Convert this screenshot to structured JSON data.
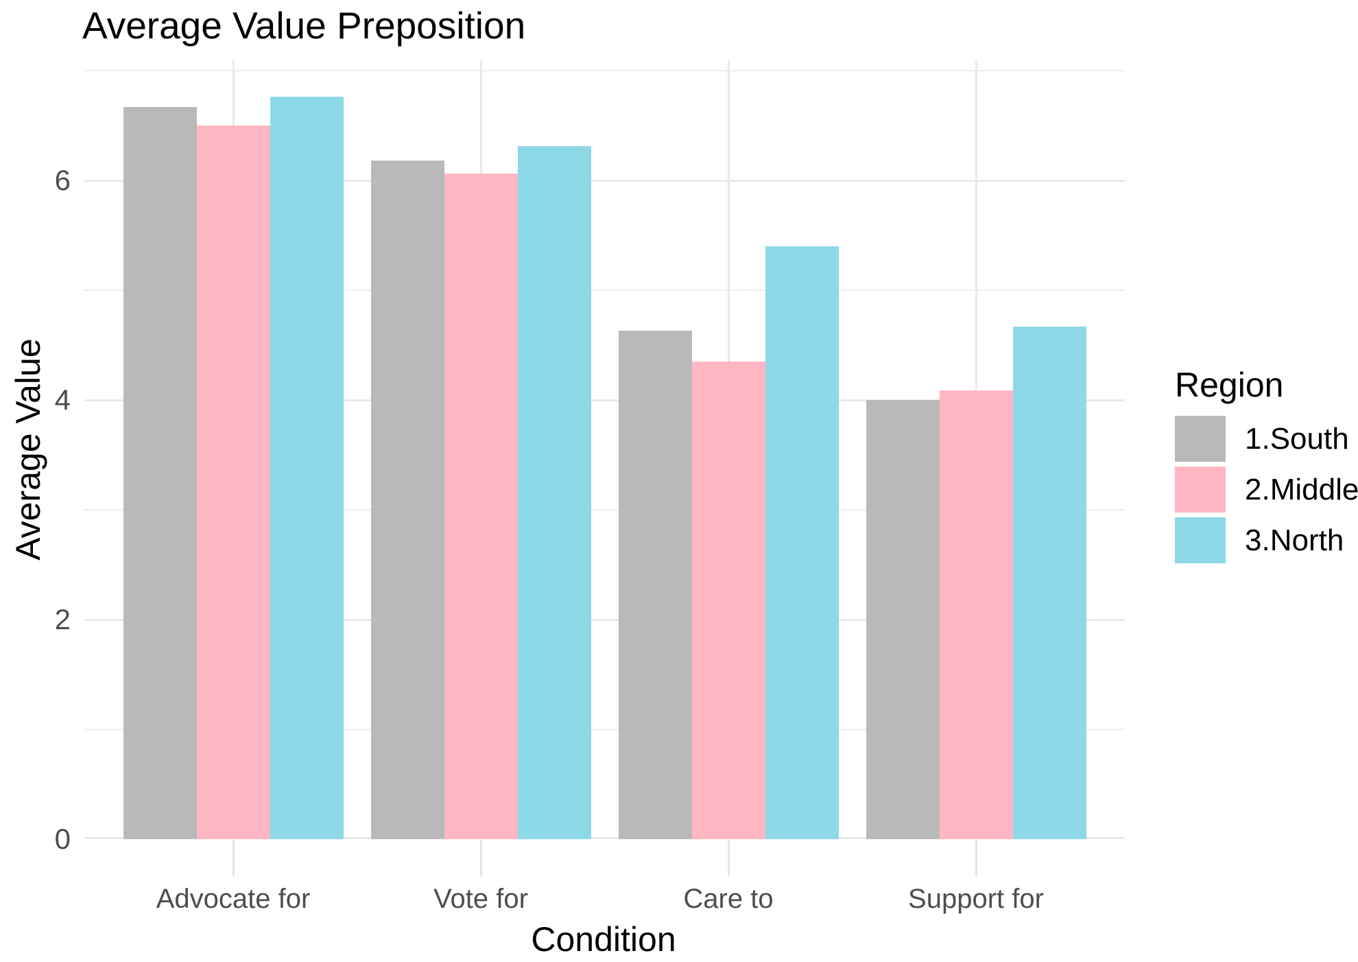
{
  "title": "Average Value Preposition",
  "chart_data": {
    "type": "bar",
    "title": "Average Value Preposition",
    "xlabel": "Condition",
    "ylabel": "Average Value",
    "categories": [
      "Advocate for",
      "Vote for",
      "Care to",
      "Support for"
    ],
    "series": [
      {
        "name": "1.South",
        "color": "#B9B9B9",
        "values": [
          6.67,
          6.18,
          4.63,
          4.0
        ]
      },
      {
        "name": "2.Middle",
        "color": "#FFB6C3",
        "values": [
          6.5,
          6.06,
          4.35,
          4.09
        ]
      },
      {
        "name": "3.North",
        "color": "#8DD9E8",
        "values": [
          6.76,
          6.31,
          5.4,
          4.67
        ]
      }
    ],
    "legend_title": "Region",
    "legend_position": "right",
    "ylim": [
      0,
      7.09
    ],
    "yticks_major": [
      0,
      2,
      4,
      6
    ],
    "yticks_minor": [
      1,
      3,
      5,
      7
    ],
    "grid": true
  },
  "colors": {
    "grid_major": "#E9E9E9",
    "grid_minor": "#EDEDED",
    "axis_tick": "#E5E5E5",
    "axis_text": "#4D4D4D",
    "title_text": "#000000",
    "background": "#FFFFFF"
  }
}
